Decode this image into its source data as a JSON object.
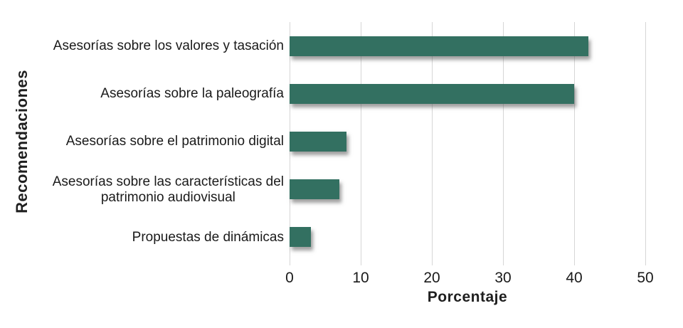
{
  "chart_data": {
    "type": "bar",
    "orientation": "horizontal",
    "title": "",
    "xlabel": "Porcentaje",
    "ylabel": "Recomendaciones",
    "categories": [
      "Asesorías sobre los valores y tasación",
      "Asesorías sobre la paleografía",
      "Asesorías sobre el patrimonio digital",
      "Asesorías sobre las características del\npatrimonio audiovisual",
      "Propuestas de dinámicas"
    ],
    "values": [
      42,
      40,
      8,
      7,
      3
    ],
    "xlim": [
      0,
      50
    ],
    "xticks": [
      0,
      10,
      20,
      30,
      40,
      50
    ],
    "grid": true,
    "legend": false,
    "bar_color": "#337061",
    "gridline_color": "#d6d6d6",
    "text_color": "#1a1a1a"
  }
}
